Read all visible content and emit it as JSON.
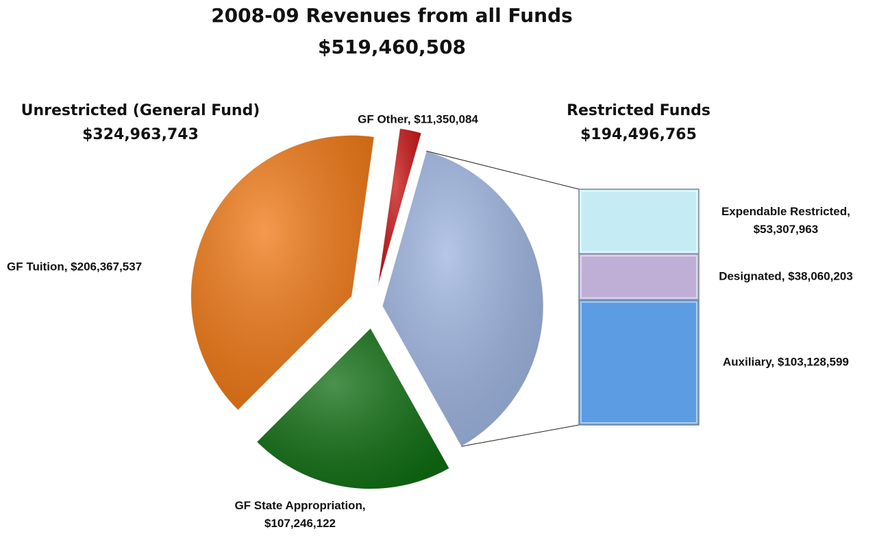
{
  "chart_data": {
    "type": "pie-of-bar",
    "title": "2008-09 Revenues from all Funds",
    "subtitle": "$519,460,508",
    "groups": [
      {
        "name": "Unrestricted (General Fund)",
        "value": 324963743,
        "value_label": "$324,963,743"
      },
      {
        "name": "Restricted Funds",
        "value": 194496765,
        "value_label": "$194,496,765"
      }
    ],
    "pie": {
      "values": [
        206367537,
        11350084,
        194496765,
        107246122
      ],
      "value_labels": [
        "GF Tuition, $206,367,537",
        "GF Other, $11,350,084",
        null,
        "GF State Appropriation, $107,246,122"
      ],
      "colors": [
        "#f07814",
        "#c81414",
        "#9db4e0",
        "#0f6e12"
      ]
    },
    "bar": {
      "values": [
        53307963,
        38060203,
        103128599
      ],
      "value_labels": [
        "Expendable Restricted, $53,307,963",
        "Designated, $38,060,203",
        "Auxiliary, $103,128,599"
      ],
      "colors": [
        "#c5ecf5",
        "#bfaed6",
        "#5c9ce2"
      ]
    }
  }
}
